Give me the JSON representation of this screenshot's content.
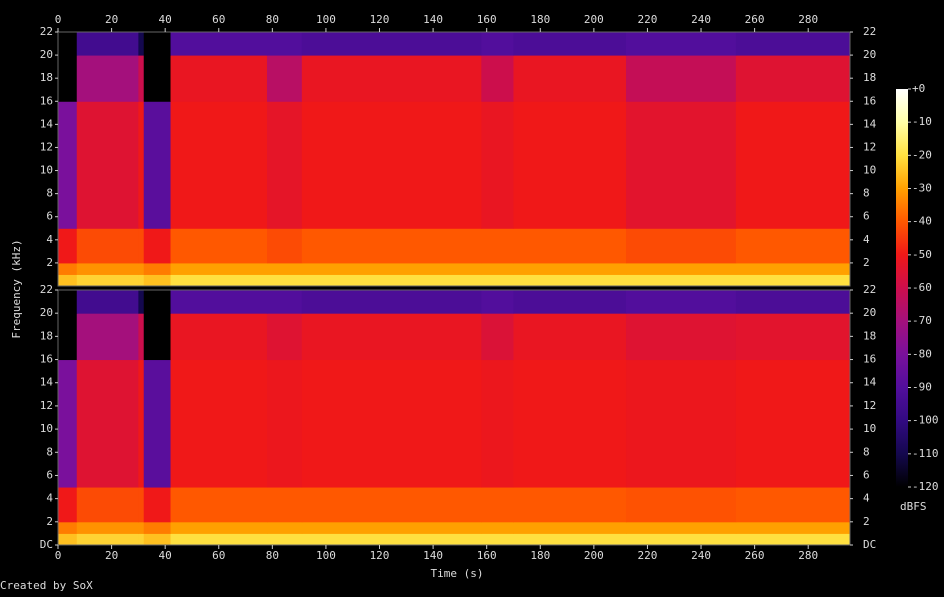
{
  "chart_data": {
    "type": "heatmap",
    "x_label": "Time (s)",
    "y_label": "Frequency (kHz)",
    "colorbar_label": "dBFS",
    "footer": "Created by SoX",
    "xlim": [
      0,
      295.6
    ],
    "xticks": [
      0,
      20,
      40,
      60,
      80,
      100,
      120,
      140,
      160,
      180,
      200,
      220,
      240,
      260,
      280
    ],
    "ylim": [
      0,
      22
    ],
    "time_edges": [
      0,
      7,
      30,
      32,
      42,
      78,
      91,
      158,
      170,
      212,
      253,
      295.6
    ],
    "freq_edges": [
      0,
      1,
      2,
      5,
      16,
      20,
      22
    ],
    "colorbar_lim": [
      -120,
      0
    ],
    "colorbar_ticks": [
      {
        "value": 0,
        "label": "+0"
      },
      -10,
      -20,
      -30,
      -40,
      -50,
      -60,
      -70,
      -80,
      -90,
      -100,
      -110,
      -120
    ],
    "colorscale": [
      {
        "value": -120,
        "color": "#000000"
      },
      {
        "value": -110,
        "color": "#14084e"
      },
      {
        "value": -100,
        "color": "#320a82"
      },
      {
        "value": -90,
        "color": "#520e9c"
      },
      {
        "value": -80,
        "color": "#7a109c"
      },
      {
        "value": -70,
        "color": "#a4107c"
      },
      {
        "value": -60,
        "color": "#cc0e4c"
      },
      {
        "value": -50,
        "color": "#f01818"
      },
      {
        "value": -40,
        "color": "#ff5800"
      },
      {
        "value": -30,
        "color": "#ffa000"
      },
      {
        "value": -20,
        "color": "#ffe040"
      },
      {
        "value": -10,
        "color": "#ffffa8"
      },
      {
        "value": 0,
        "color": "#ffffff"
      }
    ],
    "channels": [
      {
        "yticks": [
          2,
          4,
          6,
          8,
          10,
          12,
          14,
          16,
          18,
          20,
          22
        ],
        "values": [
          [
            -25,
            -22,
            -22,
            -25,
            -20,
            -20,
            -20,
            -20,
            -20,
            -20,
            -20
          ],
          [
            -35,
            -32,
            -32,
            -35,
            -30,
            -30,
            -30,
            -30,
            -30,
            -30,
            -30
          ],
          [
            -50,
            -42,
            -42,
            -50,
            -40,
            -42,
            -40,
            -40,
            -40,
            -42,
            -40
          ],
          [
            -80,
            -55,
            -50,
            -88,
            -50,
            -53,
            -50,
            -52,
            -50,
            -54,
            -50
          ],
          [
            -120,
            -70,
            -60,
            -120,
            -52,
            -65,
            -52,
            -60,
            -52,
            -62,
            -55
          ],
          [
            -120,
            -95,
            -110,
            -120,
            -90,
            -90,
            -92,
            -90,
            -92,
            -90,
            -92
          ]
        ]
      },
      {
        "yticks": [
          {
            "value": 0,
            "label": "DC"
          },
          2,
          4,
          6,
          8,
          10,
          12,
          14,
          16,
          18,
          20,
          22
        ],
        "values": [
          [
            -25,
            -22,
            -22,
            -25,
            -20,
            -20,
            -20,
            -20,
            -20,
            -20,
            -20
          ],
          [
            -35,
            -32,
            -32,
            -35,
            -30,
            -30,
            -30,
            -30,
            -30,
            -30,
            -30
          ],
          [
            -50,
            -42,
            -42,
            -50,
            -40,
            -40,
            -40,
            -40,
            -40,
            -41,
            -40
          ],
          [
            -80,
            -55,
            -50,
            -88,
            -50,
            -51,
            -50,
            -51,
            -50,
            -51,
            -50
          ],
          [
            -120,
            -70,
            -60,
            -120,
            -52,
            -55,
            -52,
            -56,
            -52,
            -55,
            -54
          ],
          [
            -120,
            -95,
            -110,
            -120,
            -90,
            -90,
            -92,
            -90,
            -92,
            -90,
            -92
          ]
        ]
      }
    ]
  }
}
